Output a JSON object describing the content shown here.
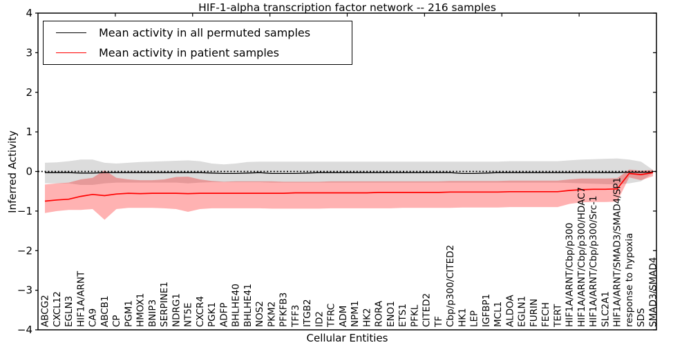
{
  "chart_data": {
    "type": "line",
    "title": "HIF-1-alpha transcription factor network -- 216 samples",
    "xlabel": "Cellular Entities",
    "ylabel": "Inferred Activity",
    "ylim": [
      -4,
      4
    ],
    "yticks": [
      -4,
      -3,
      -2,
      -1,
      0,
      1,
      2,
      3,
      4
    ],
    "grid": false,
    "zero_line": true,
    "legend_position": "upper left",
    "categories": [
      "ABCG2",
      "CXCL12",
      "EGLN3",
      "HIF1A/ARNT",
      "CA9",
      "ABCB1",
      "CP",
      "PGM1",
      "HMOX1",
      "BNIP3",
      "SERPINE1",
      "NDRG1",
      "NT5E",
      "CXCR4",
      "PGK1",
      "ADFP",
      "BHLHE40",
      "BHLHE41",
      "NOS2",
      "PKM2",
      "PFKFB3",
      "TFF3",
      "ITGB2",
      "ID2",
      "TFRC",
      "ADM",
      "NPM1",
      "HK2",
      "RORA",
      "ENO1",
      "ETS1",
      "PFKL",
      "CITED2",
      "TF",
      "Cbp/p300/CITED2",
      "HK1",
      "LEP",
      "IGFBP1",
      "MCL1",
      "ALDOA",
      "EGLN1",
      "FURIN",
      "FECH",
      "TERT",
      "HIF1A/ARNT/Cbp/p300",
      "HIF1A/ARNT/Cbp/p300/HDAC7",
      "HIF1A/ARNT/Cbp/p300/Src-1",
      "SLC2A1",
      "HIF1A/ARNT/SMAD3/SMAD4/SP1",
      "response to hypoxia",
      "SDS",
      "SMAD3/SMAD4"
    ],
    "series": [
      {
        "name": "Mean activity in all permuted samples",
        "color": "#000000",
        "band_color": "#dcdcdc",
        "band_opacity": 1,
        "values": [
          -0.03,
          -0.03,
          -0.03,
          -0.04,
          -0.04,
          -0.03,
          -0.03,
          -0.03,
          -0.03,
          -0.03,
          -0.03,
          -0.03,
          -0.03,
          -0.03,
          -0.04,
          -0.05,
          -0.05,
          -0.04,
          -0.03,
          -0.05,
          -0.05,
          -0.05,
          -0.04,
          -0.03,
          -0.03,
          -0.03,
          -0.03,
          -0.03,
          -0.03,
          -0.03,
          -0.03,
          -0.03,
          -0.03,
          -0.03,
          -0.03,
          -0.05,
          -0.05,
          -0.04,
          -0.03,
          -0.03,
          -0.03,
          -0.03,
          -0.03,
          -0.03,
          -0.03,
          -0.03,
          -0.03,
          -0.03,
          -0.03,
          -0.02,
          -0.02,
          -0.02
        ],
        "band_upper": [
          0.22,
          0.23,
          0.26,
          0.3,
          0.3,
          0.22,
          0.2,
          0.22,
          0.24,
          0.25,
          0.26,
          0.27,
          0.28,
          0.26,
          0.2,
          0.18,
          0.2,
          0.24,
          0.25,
          0.25,
          0.25,
          0.25,
          0.25,
          0.25,
          0.25,
          0.25,
          0.25,
          0.25,
          0.25,
          0.25,
          0.25,
          0.25,
          0.25,
          0.25,
          0.25,
          0.25,
          0.25,
          0.25,
          0.25,
          0.26,
          0.26,
          0.26,
          0.26,
          0.26,
          0.28,
          0.3,
          0.31,
          0.32,
          0.33,
          0.3,
          0.25,
          0.04
        ],
        "band_lower": [
          -0.3,
          -0.3,
          -0.3,
          -0.34,
          -0.34,
          -0.3,
          -0.28,
          -0.28,
          -0.28,
          -0.28,
          -0.28,
          -0.28,
          -0.3,
          -0.28,
          -0.27,
          -0.27,
          -0.27,
          -0.27,
          -0.27,
          -0.28,
          -0.28,
          -0.28,
          -0.28,
          -0.28,
          -0.28,
          -0.28,
          -0.28,
          -0.28,
          -0.28,
          -0.28,
          -0.28,
          -0.28,
          -0.28,
          -0.28,
          -0.28,
          -0.28,
          -0.28,
          -0.28,
          -0.28,
          -0.28,
          -0.28,
          -0.28,
          -0.28,
          -0.28,
          -0.29,
          -0.3,
          -0.31,
          -0.32,
          -0.33,
          -0.3,
          -0.25,
          -0.04
        ]
      },
      {
        "name": "Mean activity in patient samples",
        "color": "#ff0000",
        "band_color": "#ff0000",
        "band_opacity": 0.3,
        "values": [
          -0.75,
          -0.72,
          -0.7,
          -0.63,
          -0.58,
          -0.61,
          -0.57,
          -0.55,
          -0.56,
          -0.55,
          -0.55,
          -0.55,
          -0.56,
          -0.55,
          -0.55,
          -0.55,
          -0.55,
          -0.55,
          -0.55,
          -0.55,
          -0.55,
          -0.54,
          -0.54,
          -0.54,
          -0.54,
          -0.54,
          -0.54,
          -0.54,
          -0.53,
          -0.53,
          -0.53,
          -0.53,
          -0.53,
          -0.53,
          -0.52,
          -0.52,
          -0.52,
          -0.52,
          -0.52,
          -0.51,
          -0.51,
          -0.51,
          -0.51,
          -0.51,
          -0.48,
          -0.46,
          -0.45,
          -0.45,
          -0.44,
          -0.05,
          -0.08,
          -0.03
        ],
        "band_upper": [
          -0.33,
          -0.3,
          -0.28,
          -0.2,
          -0.16,
          0.03,
          -0.16,
          -0.2,
          -0.22,
          -0.22,
          -0.2,
          -0.14,
          -0.13,
          -0.2,
          -0.24,
          -0.26,
          -0.25,
          -0.25,
          -0.25,
          -0.25,
          -0.26,
          -0.26,
          -0.26,
          -0.26,
          -0.25,
          -0.25,
          -0.25,
          -0.25,
          -0.25,
          -0.25,
          -0.25,
          -0.25,
          -0.25,
          -0.25,
          -0.24,
          -0.24,
          -0.24,
          -0.24,
          -0.24,
          -0.23,
          -0.23,
          -0.23,
          -0.23,
          -0.23,
          -0.2,
          -0.18,
          -0.18,
          -0.18,
          -0.17,
          0.05,
          0.02,
          0.04
        ],
        "band_lower": [
          -1.05,
          -1.0,
          -0.97,
          -0.97,
          -0.95,
          -1.22,
          -0.95,
          -0.92,
          -0.92,
          -0.92,
          -0.93,
          -0.95,
          -1.02,
          -0.95,
          -0.93,
          -0.93,
          -0.93,
          -0.93,
          -0.93,
          -0.94,
          -0.94,
          -0.94,
          -0.94,
          -0.94,
          -0.93,
          -0.93,
          -0.93,
          -0.93,
          -0.93,
          -0.93,
          -0.92,
          -0.92,
          -0.92,
          -0.92,
          -0.92,
          -0.91,
          -0.91,
          -0.91,
          -0.91,
          -0.9,
          -0.9,
          -0.9,
          -0.9,
          -0.9,
          -0.82,
          -0.78,
          -0.77,
          -0.77,
          -0.76,
          -0.15,
          -0.22,
          -0.12
        ]
      }
    ]
  },
  "legend": {
    "permuted_label": "Mean activity in all permuted samples",
    "patient_label": "Mean activity in patient samples"
  }
}
